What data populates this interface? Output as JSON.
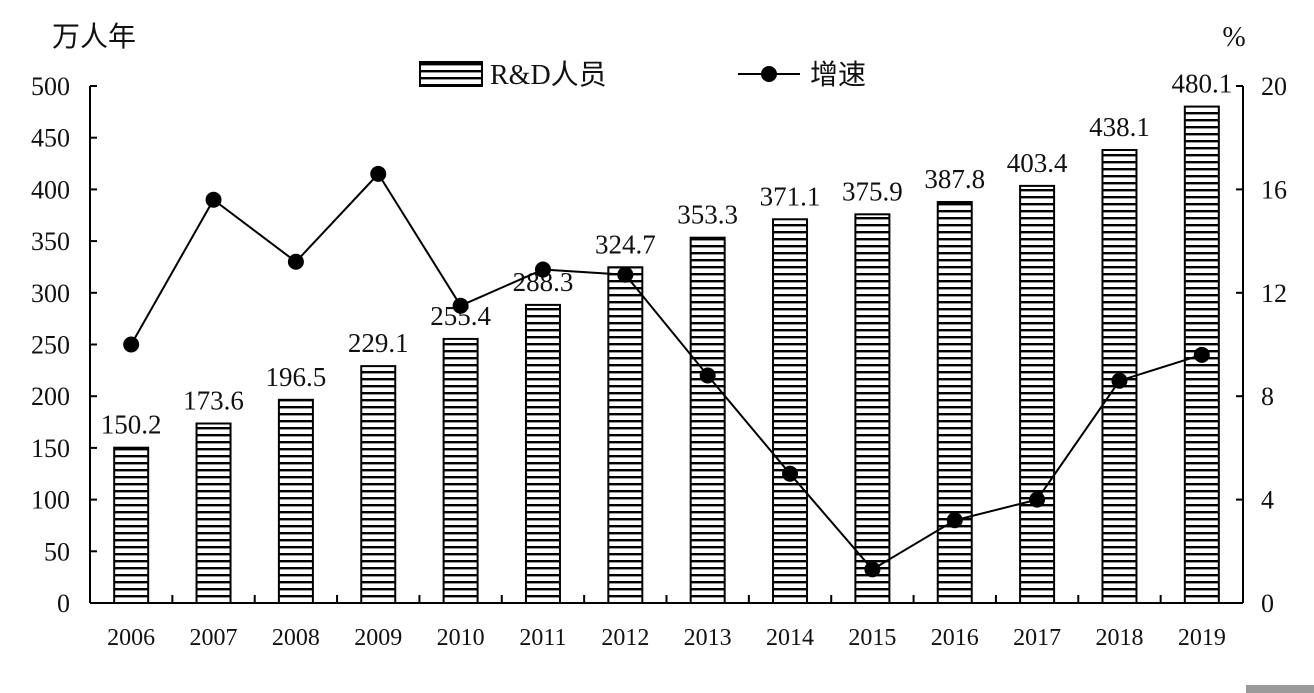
{
  "chart_data": {
    "type": "bar",
    "title": "",
    "xlabel": "",
    "ylabel": "万人年",
    "y2label": "%",
    "categories": [
      "2006",
      "2007",
      "2008",
      "2009",
      "2010",
      "2011",
      "2012",
      "2013",
      "2014",
      "2015",
      "2016",
      "2017",
      "2018",
      "2019"
    ],
    "ylim": [
      0,
      500
    ],
    "yticks": [
      0,
      50,
      100,
      150,
      200,
      250,
      300,
      350,
      400,
      450,
      500
    ],
    "y2lim": [
      0,
      20
    ],
    "y2ticks": [
      0,
      4,
      8,
      12,
      16,
      20
    ],
    "series": [
      {
        "name": "R&D人员",
        "type": "bar",
        "axis": "left",
        "pattern": "horizontal-stripes",
        "values": [
          150.2,
          173.6,
          196.5,
          229.1,
          255.4,
          288.3,
          324.7,
          353.3,
          371.1,
          375.9,
          387.8,
          403.4,
          438.1,
          480.1
        ],
        "labels": [
          "150.2",
          "173.6",
          "196.5",
          "229.1",
          "255.4",
          "288.3",
          "324.7",
          "353.3",
          "371.1",
          "375.9",
          "387.8",
          "403.4",
          "438.1",
          "480.1"
        ]
      },
      {
        "name": "增速",
        "type": "line",
        "axis": "right",
        "marker": "circle",
        "values": [
          10.0,
          15.6,
          13.2,
          16.6,
          11.5,
          12.9,
          12.7,
          8.8,
          5.0,
          1.3,
          3.2,
          4.0,
          8.6,
          9.6
        ]
      }
    ],
    "legend": "top-center",
    "grid": false,
    "colors": {
      "bar_fill": "#ffffff",
      "bar_stroke": "#000000",
      "line": "#000000",
      "marker": "#000000"
    }
  }
}
